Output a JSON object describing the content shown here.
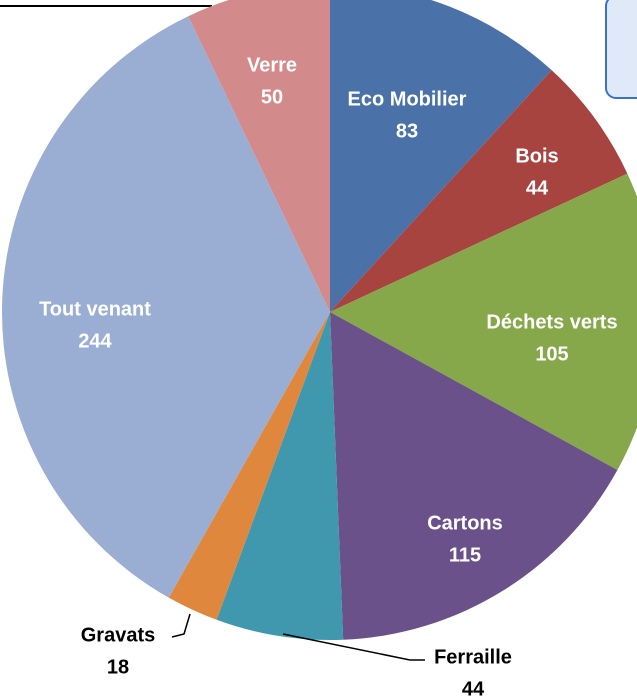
{
  "chart_data": {
    "type": "pie",
    "categories": [
      "Eco Mobilier",
      "Bois",
      "Déchets verts",
      "Cartons",
      "Ferraille",
      "Gravats",
      "Tout venant",
      "Verre"
    ],
    "values": [
      83,
      44,
      105,
      115,
      44,
      18,
      244,
      50
    ],
    "colors": [
      "#4a72a8",
      "#a84440",
      "#86a84a",
      "#6b5189",
      "#3f98ad",
      "#e0873e",
      "#9aaed4",
      "#d38a8a"
    ]
  }
}
